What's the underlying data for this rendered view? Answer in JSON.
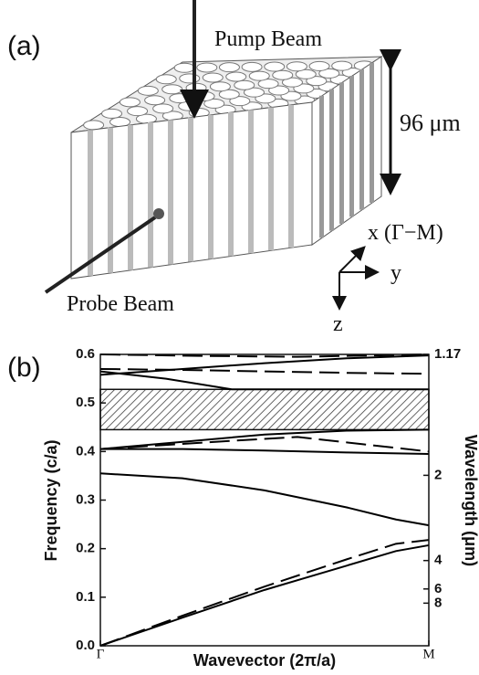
{
  "diagram": {
    "panel": "(a)",
    "pump": "Pump Beam",
    "probe": "Probe Beam",
    "height": "96 μm",
    "x_axis": "x (Γ−M)",
    "y_axis": "y",
    "z_axis": "z"
  },
  "chart_data": {
    "type": "line",
    "panel": "(b)",
    "x_label": "Wavevector (2π/a)",
    "y_label": "Frequency (c/a)",
    "y2_label": "Wavelength (μm)",
    "xlim": [
      0,
      1
    ],
    "xticks": [
      {
        "value": 0,
        "label": "Γ"
      },
      {
        "value": 1,
        "label": "M"
      }
    ],
    "ylim": [
      0,
      0.6
    ],
    "yticks": [
      {
        "value": 0,
        "label": "0.0"
      },
      0.1,
      0.2,
      0.3,
      0.4,
      0.5,
      0.6
    ],
    "y2scale": "reciprocal",
    "y2lim": [
      null,
      1.17
    ],
    "y2ticks": [
      1.17,
      2,
      4,
      6,
      8
    ],
    "shaded_band": [
      0.445,
      0.528
    ],
    "series": [
      {
        "color": "#000",
        "dash": false,
        "x": [
          0,
          0.25,
          0.5,
          0.75,
          0.9,
          1
        ],
        "values": [
          0,
          0.058,
          0.115,
          0.165,
          0.195,
          0.207
        ]
      },
      {
        "color": "#000",
        "dash": true,
        "x": [
          0,
          0.25,
          0.5,
          0.75,
          0.9,
          1
        ],
        "values": [
          0,
          0.062,
          0.122,
          0.178,
          0.21,
          0.218
        ]
      },
      {
        "color": "#000",
        "dash": false,
        "x": [
          0,
          0.25,
          0.5,
          0.75,
          0.9,
          1
        ],
        "values": [
          0.355,
          0.345,
          0.32,
          0.285,
          0.26,
          0.248
        ]
      },
      {
        "color": "#000",
        "dash": false,
        "x": [
          0,
          0.25,
          0.5,
          0.75,
          1
        ],
        "values": [
          0.405,
          0.42,
          0.435,
          0.443,
          0.445
        ]
      },
      {
        "color": "#000",
        "dash": false,
        "x": [
          0,
          0.25,
          0.5,
          0.75,
          1
        ],
        "values": [
          0.405,
          0.405,
          0.402,
          0.398,
          0.395
        ]
      },
      {
        "color": "#000",
        "dash": true,
        "x": [
          0,
          0.35,
          0.6,
          0.8,
          1
        ],
        "values": [
          0.405,
          0.42,
          0.43,
          0.415,
          0.4
        ]
      },
      {
        "color": "#000",
        "dash": false,
        "x": [
          0,
          0.2,
          0.4,
          0.6,
          1
        ],
        "values": [
          0.565,
          0.55,
          0.528,
          0.528,
          0.528
        ]
      },
      {
        "color": "#000",
        "dash": false,
        "x": [
          0,
          0.25,
          0.5,
          0.75,
          1
        ],
        "values": [
          0.558,
          0.57,
          0.582,
          0.592,
          0.598
        ]
      },
      {
        "color": "#000",
        "dash": true,
        "x": [
          0,
          0.25,
          0.5,
          0.75,
          1
        ],
        "values": [
          0.57,
          0.568,
          0.565,
          0.562,
          0.56
        ]
      },
      {
        "color": "#000",
        "dash": true,
        "x": [
          0,
          0.3,
          0.6,
          1
        ],
        "values": [
          0.6,
          0.597,
          0.595,
          0.6
        ]
      }
    ]
  }
}
